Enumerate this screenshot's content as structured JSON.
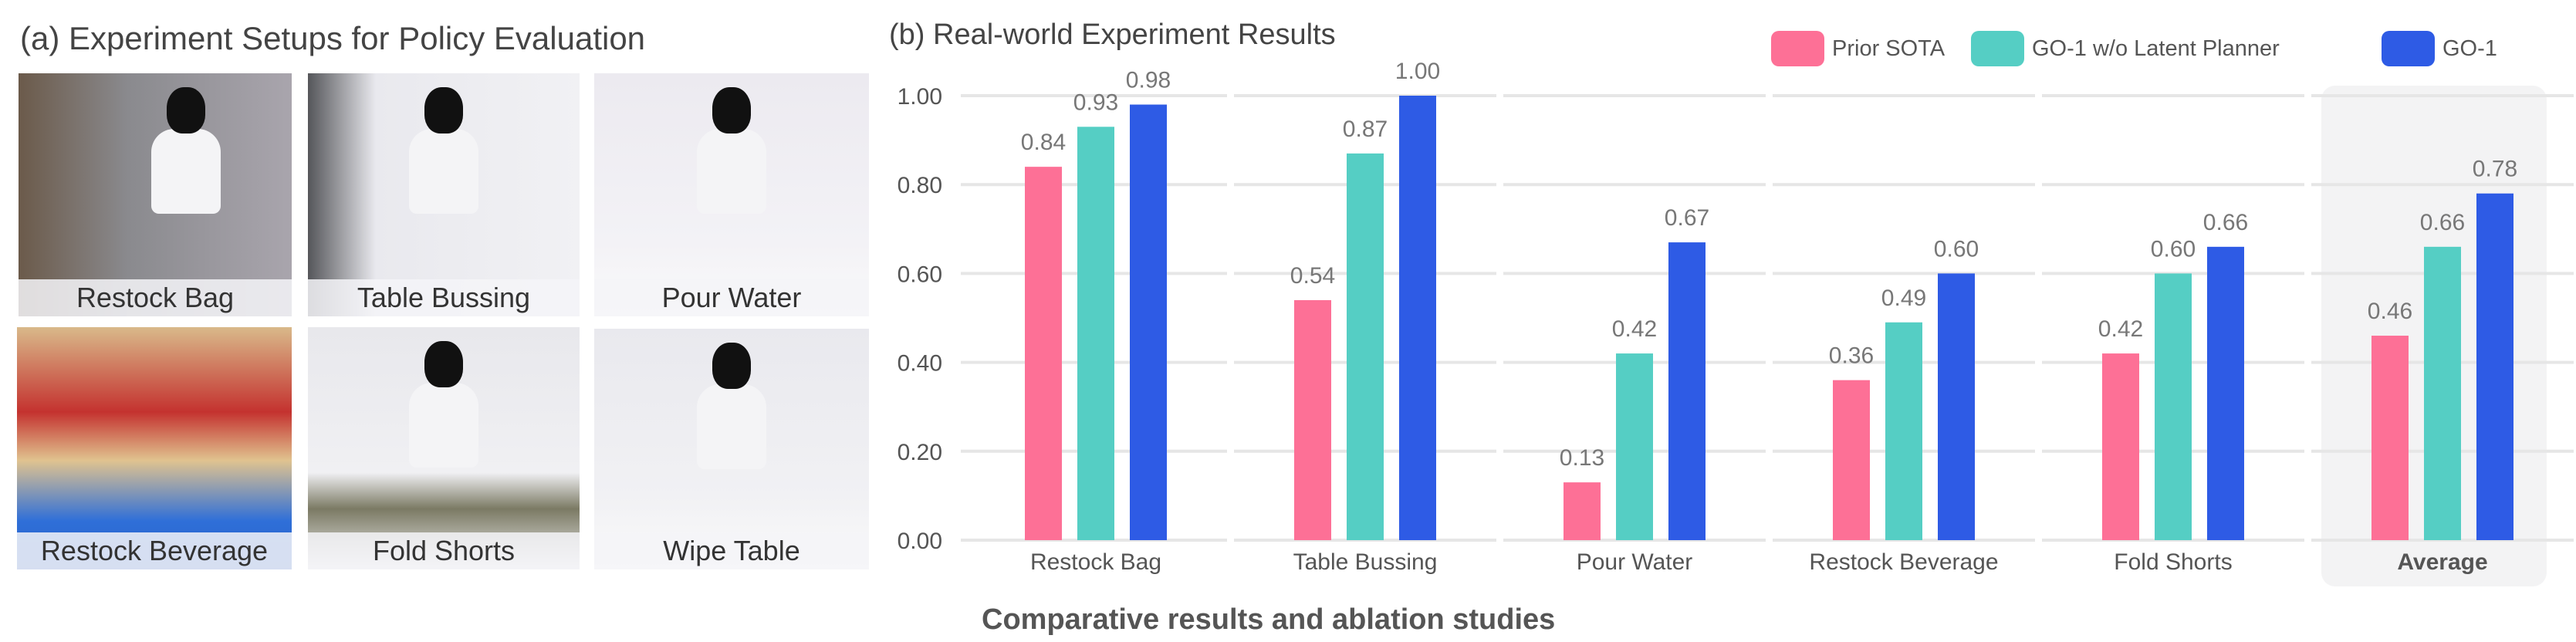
{
  "left_panel": {
    "title": "(a) Experiment Setups for Policy Evaluation",
    "photos": [
      {
        "label": "Restock Bag"
      },
      {
        "label": "Table Bussing"
      },
      {
        "label": "Pour Water"
      },
      {
        "label": "Restock Beverage"
      },
      {
        "label": "Fold Shorts"
      },
      {
        "label": "Wipe Table"
      }
    ]
  },
  "caption": "Comparative results and ablation studies",
  "chart_data": {
    "type": "bar",
    "title": "(b) Real-world Experiment Results",
    "xlabel": "",
    "ylabel": "",
    "ylim": [
      0,
      1.0
    ],
    "yticks": [
      "0.00",
      "0.20",
      "0.40",
      "0.60",
      "0.80",
      "1.00"
    ],
    "grid": true,
    "legend_placement": "top-right",
    "categories": [
      "Restock Bag",
      "Table Bussing",
      "Pour Water",
      "Restock Beverage",
      "Fold Shorts",
      "Average"
    ],
    "highlighted_category": "Average",
    "series": [
      {
        "name": "Prior SOTA",
        "color": "#fd7096",
        "values": [
          0.84,
          0.54,
          0.13,
          0.36,
          0.42,
          0.46
        ]
      },
      {
        "name": "GO-1 w/o Latent Planner",
        "color": "#55cec4",
        "values": [
          0.93,
          0.87,
          0.42,
          0.49,
          0.6,
          0.66
        ]
      },
      {
        "name": "GO-1",
        "color": "#2e5be5",
        "values": [
          0.98,
          1.0,
          0.67,
          0.6,
          0.66,
          0.78
        ]
      }
    ]
  }
}
